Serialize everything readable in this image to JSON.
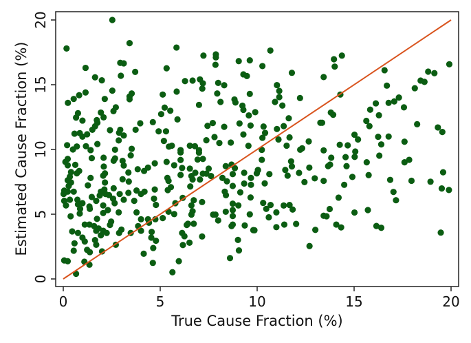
{
  "chart_data": {
    "type": "scatter",
    "title": "",
    "xlabel": "True Cause Fraction (%)",
    "ylabel": "Estimated Cause Fraction (%)",
    "xlim": [
      0,
      20
    ],
    "ylim": [
      0,
      20
    ],
    "xticks": [
      "0",
      "5",
      "10",
      "15",
      "20"
    ],
    "yticks": [
      "0",
      "5",
      "10",
      "15",
      "20"
    ],
    "grid": false,
    "legend": "none",
    "colors": {
      "points": "#0b5d12",
      "reference_line": "#d9541e",
      "frame": "#222222"
    },
    "reference_line": {
      "from": [
        0,
        0
      ],
      "to": [
        20,
        20
      ]
    },
    "points": [
      [
        10.68,
        17.64
      ],
      [
        10.27,
        16.44
      ],
      [
        11.79,
        15.92
      ],
      [
        13.96,
        16.97
      ],
      [
        14.37,
        17.25
      ],
      [
        14.0,
        16.4
      ],
      [
        13.43,
        15.59
      ],
      [
        16.57,
        16.12
      ],
      [
        16.69,
        14.93
      ],
      [
        19.91,
        16.58
      ],
      [
        18.82,
        16.01
      ],
      [
        19.14,
        15.89
      ],
      [
        18.43,
        15.32
      ],
      [
        18.63,
        15.22
      ],
      [
        18.13,
        14.73
      ],
      [
        11.02,
        14.97
      ],
      [
        11.14,
        14.52
      ],
      [
        11.14,
        14.04
      ],
      [
        10.92,
        13.67
      ],
      [
        11.3,
        13.39
      ],
      [
        12.21,
        13.97
      ],
      [
        14.29,
        14.24
      ],
      [
        16.78,
        13.6
      ],
      [
        17.07,
        13.71
      ],
      [
        17.31,
        14.01
      ],
      [
        17.57,
        13.25
      ],
      [
        16.12,
        13.56
      ],
      [
        15.83,
        13.07
      ],
      [
        16.28,
        12.64
      ],
      [
        15.63,
        12.21
      ],
      [
        15.79,
        11.8
      ],
      [
        18.25,
        11.95
      ],
      [
        19.32,
        11.7
      ],
      [
        19.55,
        11.35
      ],
      [
        13.8,
        12.85
      ],
      [
        13.92,
        12.68
      ],
      [
        13.26,
        12.06
      ],
      [
        13.35,
        12.06
      ],
      [
        11.63,
        12.41
      ],
      [
        11.37,
        11.8
      ],
      [
        10.33,
        11.77
      ],
      [
        11.02,
        11.58
      ],
      [
        10.41,
        11.28
      ],
      [
        10.27,
        10.9
      ],
      [
        11.1,
        10.77
      ],
      [
        11.67,
        10.93
      ],
      [
        11.52,
        10.29
      ],
      [
        12.66,
        10.62
      ],
      [
        12.22,
        9.98
      ],
      [
        12.32,
        10.09
      ],
      [
        13.43,
        9.93
      ],
      [
        14.26,
        10.36
      ],
      [
        14.67,
        10.32
      ],
      [
        15.02,
        11.14
      ],
      [
        15.2,
        10.77
      ],
      [
        16.24,
        10.98
      ],
      [
        16.78,
        11.0
      ],
      [
        16.4,
        10.39
      ],
      [
        17.6,
        10.6
      ],
      [
        15.06,
        9.84
      ],
      [
        15.03,
        9.43
      ],
      [
        16.3,
        9.52
      ],
      [
        15.65,
        9.01
      ],
      [
        17.6,
        9.01
      ],
      [
        17.84,
        9.2
      ],
      [
        10.24,
        9.97
      ],
      [
        10.24,
        9.2
      ],
      [
        10.04,
        8.39
      ],
      [
        10.63,
        8.1
      ],
      [
        10.39,
        7.38
      ],
      [
        11.75,
        9.08
      ],
      [
        11.79,
        8.69
      ],
      [
        11.45,
        8.42
      ],
      [
        11.57,
        7.98
      ],
      [
        12.16,
        8.19
      ],
      [
        12.69,
        8.6
      ],
      [
        12.44,
        7.48
      ],
      [
        12.97,
        7.77
      ],
      [
        13.43,
        7.57
      ],
      [
        13.82,
        9.36
      ],
      [
        13.76,
        8.83
      ],
      [
        13.66,
        8.71
      ],
      [
        14.56,
        9.41
      ],
      [
        14.61,
        8.71
      ],
      [
        14.91,
        7.88
      ],
      [
        15.75,
        8.02
      ],
      [
        14.49,
        7.27
      ],
      [
        16.86,
        7.65
      ],
      [
        17.96,
        7.58
      ],
      [
        18.94,
        7.51
      ],
      [
        19.59,
        8.24
      ],
      [
        19.52,
        6.99
      ],
      [
        19.89,
        6.87
      ],
      [
        17.03,
        6.72
      ],
      [
        17.16,
        6.08
      ],
      [
        14.2,
        6.28
      ],
      [
        10.31,
        5.87
      ],
      [
        10.69,
        5.71
      ],
      [
        10.47,
        5.41
      ],
      [
        10.6,
        4.76
      ],
      [
        10.99,
        5.14
      ],
      [
        11.37,
        5.67
      ],
      [
        11.67,
        5.71
      ],
      [
        11.83,
        5.36
      ],
      [
        10.99,
        4.0
      ],
      [
        11.4,
        4.2
      ],
      [
        12.01,
        4.25
      ],
      [
        13.0,
        3.79
      ],
      [
        13.74,
        5.4
      ],
      [
        13.43,
        4.88
      ],
      [
        13.58,
        4.84
      ],
      [
        14.08,
        4.2
      ],
      [
        14.33,
        3.98
      ],
      [
        15.02,
        5.13
      ],
      [
        15.71,
        5.32
      ],
      [
        16.15,
        4.09
      ],
      [
        16.4,
        3.95
      ],
      [
        19.47,
        3.58
      ],
      [
        12.7,
        2.54
      ],
      [
        9.86,
        3.76
      ],
      [
        2.53,
        20.0
      ],
      [
        0.17,
        17.8
      ],
      [
        3.42,
        18.21
      ],
      [
        5.84,
        17.87
      ],
      [
        1.15,
        16.3
      ],
      [
        2.94,
        16.69
      ],
      [
        3.12,
        16.65
      ],
      [
        3.71,
        15.99
      ],
      [
        2.97,
        15.69
      ],
      [
        1.64,
        15.57
      ],
      [
        1.99,
        15.34
      ],
      [
        5.33,
        16.27
      ],
      [
        7.23,
        17.25
      ],
      [
        7.87,
        17.34
      ],
      [
        7.87,
        17.11
      ],
      [
        7.85,
        16.54
      ],
      [
        9.05,
        16.82
      ],
      [
        9.62,
        16.88
      ],
      [
        9.29,
        15.8
      ],
      [
        9.47,
        15.67
      ],
      [
        6.28,
        15.28
      ],
      [
        6.67,
        15.32
      ],
      [
        7.05,
        15.41
      ],
      [
        7.2,
        15.11
      ],
      [
        7.17,
        14.7
      ],
      [
        7.99,
        15.14
      ],
      [
        8.3,
        14.96
      ],
      [
        7.94,
        14.32
      ],
      [
        8.11,
        13.67
      ],
      [
        7.0,
        13.44
      ],
      [
        5.85,
        14.47
      ],
      [
        5.13,
        14.24
      ],
      [
        2.53,
        14.54
      ],
      [
        3.53,
        14.32
      ],
      [
        3.42,
        14.09
      ],
      [
        3.42,
        13.88
      ],
      [
        2.14,
        13.9
      ],
      [
        1.15,
        14.4
      ],
      [
        0.82,
        14.19
      ],
      [
        0.54,
        13.9
      ],
      [
        0.24,
        13.6
      ],
      [
        2.71,
        13.25
      ],
      [
        2.59,
        12.96
      ],
      [
        1.94,
        12.85
      ],
      [
        2.08,
        12.48
      ],
      [
        0.76,
        12.8
      ],
      [
        0.66,
        12.46
      ],
      [
        0.99,
        12.23
      ],
      [
        1.73,
        12.27
      ],
      [
        1.76,
        12.06
      ],
      [
        1.64,
        11.79
      ],
      [
        1.5,
        11.52
      ],
      [
        0.58,
        11.22
      ],
      [
        0.85,
        11.26
      ],
      [
        0.99,
        10.99
      ],
      [
        1.23,
        11.17
      ],
      [
        2.41,
        11.49
      ],
      [
        2.94,
        11.52
      ],
      [
        2.88,
        11.29
      ],
      [
        3.12,
        11.08
      ],
      [
        3.73,
        11.52
      ],
      [
        3.97,
        12.02
      ],
      [
        2.86,
        10.7
      ],
      [
        1.76,
        10.42
      ],
      [
        0.2,
        10.33
      ],
      [
        0.7,
        10.23
      ],
      [
        0.5,
        10.0
      ],
      [
        1.17,
        10.25
      ],
      [
        2.67,
        9.98
      ],
      [
        3.53,
        10.05
      ],
      [
        4.62,
        12.11
      ],
      [
        5.23,
        13.23
      ],
      [
        5.52,
        12.99
      ],
      [
        5.05,
        12.73
      ],
      [
        5.89,
        12.32
      ],
      [
        4.92,
        11.4
      ],
      [
        5.3,
        11.4
      ],
      [
        5.19,
        10.66
      ],
      [
        5.45,
        10.22
      ],
      [
        5.6,
        10.29
      ],
      [
        6.05,
        9.95
      ],
      [
        6.53,
        10.29
      ],
      [
        6.79,
        10.25
      ],
      [
        7.0,
        9.95
      ],
      [
        7.44,
        11.82
      ],
      [
        7.71,
        12.04
      ],
      [
        8.3,
        11.75
      ],
      [
        7.8,
        10.96
      ],
      [
        7.38,
        10.71
      ],
      [
        8.05,
        10.5
      ],
      [
        8.64,
        10.53
      ],
      [
        9.09,
        12.01
      ],
      [
        9.66,
        11.85
      ],
      [
        9.29,
        11.16
      ],
      [
        9.55,
        10.28
      ],
      [
        8.83,
        13.86
      ],
      [
        8.88,
        13.63
      ],
      [
        9.24,
        13.38
      ],
      [
        9.29,
        13.06
      ],
      [
        9.57,
        12.63
      ],
      [
        9.9,
        12.88
      ],
      [
        9.62,
        14.29
      ],
      [
        1.41,
        9.95
      ],
      [
        1.47,
        9.33
      ],
      [
        2.08,
        9.36
      ],
      [
        3.48,
        9.54
      ],
      [
        2.6,
        9.13
      ],
      [
        2.67,
        9.31
      ],
      [
        0.23,
        9.27
      ],
      [
        0.11,
        9.04
      ],
      [
        0.23,
        8.78
      ],
      [
        0.62,
        8.81
      ],
      [
        0.4,
        8.25
      ],
      [
        0.34,
        7.89
      ],
      [
        0.23,
        7.62
      ],
      [
        0.4,
        7.45
      ],
      [
        0.28,
        7.18
      ],
      [
        0.82,
        8.34
      ],
      [
        0.7,
        8.16
      ],
      [
        0.05,
        6.82
      ],
      [
        0.02,
        6.56
      ],
      [
        0.23,
        6.74
      ],
      [
        0.54,
        6.74
      ],
      [
        0.05,
        6.03
      ],
      [
        0.14,
        5.68
      ],
      [
        0.34,
        6.12
      ],
      [
        0.73,
        6.12
      ],
      [
        0.76,
        5.76
      ],
      [
        0.99,
        5.85
      ],
      [
        0.87,
        5.41
      ],
      [
        1.35,
        5.59
      ],
      [
        1.37,
        5.41
      ],
      [
        0.38,
        4.84
      ],
      [
        0.85,
        5.05
      ],
      [
        1.11,
        4.2
      ],
      [
        1.35,
        4.2
      ],
      [
        0.46,
        3.67
      ],
      [
        0.76,
        3.55
      ],
      [
        0.99,
        3.19
      ],
      [
        1.11,
        2.89
      ],
      [
        0.58,
        2.75
      ],
      [
        0.54,
        2.18
      ],
      [
        1.23,
        2.25
      ],
      [
        1.37,
        2.07
      ],
      [
        0.05,
        1.43
      ],
      [
        0.23,
        1.37
      ],
      [
        1.09,
        1.33
      ],
      [
        1.35,
        1.1
      ],
      [
        0.66,
        0.4
      ],
      [
        1.41,
        7.8
      ],
      [
        1.27,
        7.23
      ],
      [
        2.09,
        8.68
      ],
      [
        2.15,
        8.15
      ],
      [
        2.06,
        7.98
      ],
      [
        2.15,
        7.45
      ],
      [
        1.94,
        6.74
      ],
      [
        2.12,
        6.91
      ],
      [
        2.18,
        6.56
      ],
      [
        2.36,
        6.47
      ],
      [
        1.88,
        6.44
      ],
      [
        1.47,
        6.33
      ],
      [
        1.7,
        6.03
      ],
      [
        2.06,
        5.68
      ],
      [
        2.6,
        7.0
      ],
      [
        2.57,
        6.2
      ],
      [
        2.65,
        5.85
      ],
      [
        2.3,
        5.32
      ],
      [
        2.06,
        5.09
      ],
      [
        1.74,
        4.64
      ],
      [
        1.59,
        4.08
      ],
      [
        1.82,
        3.9
      ],
      [
        2.06,
        3.72
      ],
      [
        2.24,
        3.55
      ],
      [
        1.7,
        3.72
      ],
      [
        1.94,
        3.37
      ],
      [
        2.47,
        4.43
      ],
      [
        2.41,
        4.17
      ],
      [
        2.86,
        5.14
      ],
      [
        3.0,
        3.81
      ],
      [
        2.88,
        3.55
      ],
      [
        1.64,
        3.0
      ],
      [
        1.7,
        2.64
      ],
      [
        2.0,
        2.13
      ],
      [
        2.71,
        2.64
      ],
      [
        3.06,
        9.12
      ],
      [
        3.12,
        8.76
      ],
      [
        3.36,
        8.22
      ],
      [
        3.06,
        7.7
      ],
      [
        3.38,
        7.52
      ],
      [
        2.91,
        6.56
      ],
      [
        3.12,
        6.12
      ],
      [
        3.36,
        6.65
      ],
      [
        3.78,
        5.14
      ],
      [
        3.84,
        8.47
      ],
      [
        4.17,
        8.34
      ],
      [
        4.37,
        8.6
      ],
      [
        4.72,
        8.93
      ],
      [
        3.78,
        6.83
      ],
      [
        4.01,
        6.56
      ],
      [
        4.19,
        6.74
      ],
      [
        3.66,
        6.03
      ],
      [
        4.72,
        6.91
      ],
      [
        4.68,
        6.2
      ],
      [
        4.78,
        5.72
      ],
      [
        4.01,
        4.61
      ],
      [
        3.86,
        4.08
      ],
      [
        4.01,
        3.72
      ],
      [
        4.37,
        4.61
      ],
      [
        4.42,
        4.34
      ],
      [
        4.75,
        4.61
      ],
      [
        3.48,
        3.55
      ],
      [
        4.56,
        3.63
      ],
      [
        4.54,
        3.19
      ],
      [
        4.78,
        2.95
      ],
      [
        4.64,
        2.39
      ],
      [
        4.15,
        1.95
      ],
      [
        4.62,
        1.24
      ],
      [
        5.13,
        4.7
      ],
      [
        5.33,
        9.04
      ],
      [
        5.72,
        8.78
      ],
      [
        6.05,
        9.77
      ],
      [
        6.05,
        9.19
      ],
      [
        6.13,
        8.57
      ],
      [
        6.05,
        8.03
      ],
      [
        5.37,
        7.8
      ],
      [
        5.43,
        7.57
      ],
      [
        5.55,
        7.09
      ],
      [
        5.39,
        6.86
      ],
      [
        5.78,
        5.85
      ],
      [
        5.43,
        5.19
      ],
      [
        5.72,
        5.01
      ],
      [
        6.16,
        6.26
      ],
      [
        6.53,
        8.52
      ],
      [
        6.67,
        7.68
      ],
      [
        6.55,
        7.14
      ],
      [
        6.61,
        7.95
      ],
      [
        6.81,
        8.2
      ],
      [
        7.05,
        7.68
      ],
      [
        7.2,
        8.13
      ],
      [
        7.5,
        8.52
      ],
      [
        7.38,
        8.13
      ],
      [
        7.62,
        7.95
      ],
      [
        6.73,
        6.08
      ],
      [
        6.61,
        5.68
      ],
      [
        6.67,
        5.23
      ],
      [
        6.61,
        4.97
      ],
      [
        6.43,
        4.26
      ],
      [
        6.37,
        4.17
      ],
      [
        6.73,
        4.26
      ],
      [
        7.16,
        5.94
      ],
      [
        6.13,
        3.55
      ],
      [
        6.25,
        3.3
      ],
      [
        6.17,
        2.62
      ],
      [
        6.51,
        2.8
      ],
      [
        7.16,
        3.28
      ],
      [
        5.96,
        1.37
      ],
      [
        5.63,
        0.52
      ],
      [
        7.0,
        9.75
      ],
      [
        6.93,
        9.22
      ],
      [
        7.2,
        9.27
      ],
      [
        8.38,
        8.71
      ],
      [
        8.68,
        8.83
      ],
      [
        8.85,
        8.56
      ],
      [
        8.21,
        7.8
      ],
      [
        8.44,
        7.54
      ],
      [
        8.74,
        7.18
      ],
      [
        8.33,
        6.74
      ],
      [
        8.39,
        6.47
      ],
      [
        8.74,
        8.1
      ],
      [
        9.13,
        6.69
      ],
      [
        9.33,
        8.2
      ],
      [
        9.68,
        7.8
      ],
      [
        9.33,
        7.37
      ],
      [
        9.68,
        7.27
      ],
      [
        9.66,
        6.29
      ],
      [
        9.62,
        4.99
      ],
      [
        8.74,
        5.81
      ],
      [
        8.74,
        5.32
      ],
      [
        9.03,
        5.68
      ],
      [
        8.38,
        5.19
      ],
      [
        8.74,
        4.86
      ],
      [
        7.85,
        4.97
      ],
      [
        7.99,
        4.52
      ],
      [
        7.73,
        4.97
      ],
      [
        8.68,
        4.08
      ],
      [
        8.74,
        4.2
      ],
      [
        9.36,
        4.13
      ],
      [
        9.8,
        3.77
      ],
      [
        9.01,
        3.01
      ],
      [
        9.06,
        2.2
      ],
      [
        8.6,
        1.61
      ],
      [
        10.04,
        8.42
      ],
      [
        9.98,
        8.15
      ]
    ]
  }
}
